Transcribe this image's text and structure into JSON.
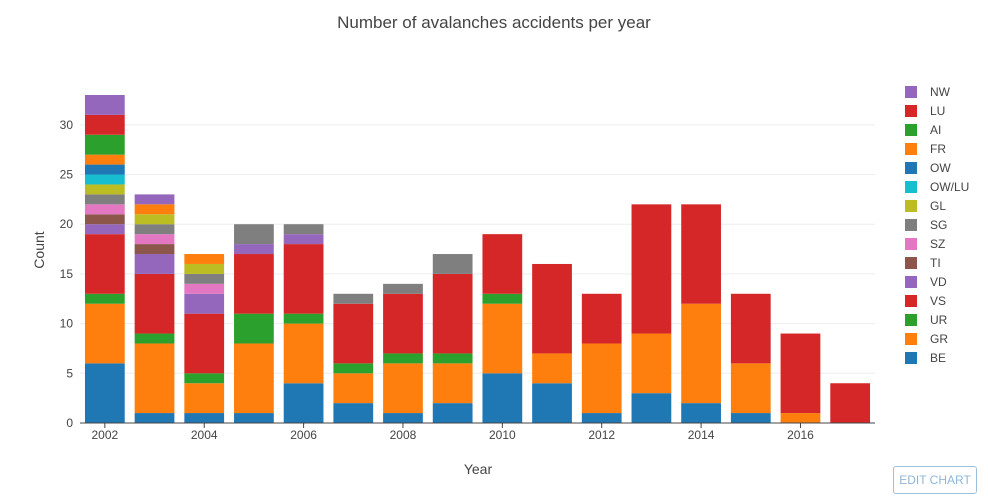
{
  "chart_data": {
    "type": "bar",
    "stacked": true,
    "title": "Number of avalanches accidents per year",
    "xlabel": "Year",
    "ylabel": "Count",
    "ylim": [
      0,
      33
    ],
    "yticks": [
      0,
      5,
      10,
      15,
      20,
      25,
      30
    ],
    "xticks": [
      2002,
      2004,
      2006,
      2008,
      2010,
      2012,
      2014,
      2016
    ],
    "grid": true,
    "legend_position": "right",
    "x": [
      2002,
      2003,
      2004,
      2005,
      2006,
      2007,
      2008,
      2009,
      2010,
      2011,
      2012,
      2013,
      2014,
      2015,
      2016,
      2017
    ],
    "series": [
      {
        "name": "BE",
        "color": "#1f77b4",
        "values": [
          6,
          1,
          1,
          1,
          4,
          2,
          1,
          2,
          5,
          4,
          1,
          3,
          2,
          1,
          0,
          0
        ]
      },
      {
        "name": "GR",
        "color": "#ff7f0e",
        "values": [
          6,
          7,
          3,
          7,
          6,
          3,
          5,
          4,
          7,
          3,
          7,
          6,
          10,
          5,
          1,
          0
        ]
      },
      {
        "name": "UR",
        "color": "#2ca02c",
        "values": [
          1,
          1,
          1,
          3,
          1,
          1,
          1,
          1,
          1,
          0,
          0,
          0,
          0,
          0,
          0,
          0
        ]
      },
      {
        "name": "VS",
        "color": "#d62728",
        "values": [
          6,
          6,
          6,
          6,
          7,
          6,
          6,
          8,
          6,
          9,
          5,
          13,
          10,
          7,
          8,
          4
        ]
      },
      {
        "name": "VD",
        "color": "#9467bd",
        "values": [
          1,
          2,
          2,
          1,
          1,
          0,
          0,
          0,
          0,
          0,
          0,
          0,
          0,
          0,
          0,
          0
        ]
      },
      {
        "name": "TI",
        "color": "#8c564b",
        "values": [
          1,
          1,
          0,
          0,
          0,
          0,
          0,
          0,
          0,
          0,
          0,
          0,
          0,
          0,
          0,
          0
        ]
      },
      {
        "name": "SZ",
        "color": "#e377c2",
        "values": [
          1,
          1,
          1,
          0,
          0,
          0,
          0,
          0,
          0,
          0,
          0,
          0,
          0,
          0,
          0,
          0
        ]
      },
      {
        "name": "SG",
        "color": "#7f7f7f",
        "values": [
          1,
          1,
          1,
          2,
          1,
          1,
          1,
          2,
          0,
          0,
          0,
          0,
          0,
          0,
          0,
          0
        ]
      },
      {
        "name": "GL",
        "color": "#bcbd22",
        "values": [
          1,
          1,
          1,
          0,
          0,
          0,
          0,
          0,
          0,
          0,
          0,
          0,
          0,
          0,
          0,
          0
        ]
      },
      {
        "name": "OW/LU",
        "color": "#17becf",
        "values": [
          1,
          0,
          0,
          0,
          0,
          0,
          0,
          0,
          0,
          0,
          0,
          0,
          0,
          0,
          0,
          0
        ]
      },
      {
        "name": "OW",
        "color": "#1f77b4",
        "values": [
          1,
          0,
          0,
          0,
          0,
          0,
          0,
          0,
          0,
          0,
          0,
          0,
          0,
          0,
          0,
          0
        ]
      },
      {
        "name": "FR",
        "color": "#ff7f0e",
        "values": [
          1,
          1,
          1,
          0,
          0,
          0,
          0,
          0,
          0,
          0,
          0,
          0,
          0,
          0,
          0,
          0
        ]
      },
      {
        "name": "AI",
        "color": "#2ca02c",
        "values": [
          2,
          0,
          0,
          0,
          0,
          0,
          0,
          0,
          0,
          0,
          0,
          0,
          0,
          0,
          0,
          0
        ]
      },
      {
        "name": "LU",
        "color": "#d62728",
        "values": [
          2,
          0,
          0,
          0,
          0,
          0,
          0,
          0,
          0,
          0,
          0,
          0,
          0,
          0,
          0,
          0
        ]
      },
      {
        "name": "NW",
        "color": "#9467bd",
        "values": [
          2,
          1,
          0,
          0,
          0,
          0,
          0,
          0,
          0,
          0,
          0,
          0,
          0,
          0,
          0,
          0
        ]
      }
    ]
  },
  "controls": {
    "edit_chart_label": "EDIT CHART"
  }
}
